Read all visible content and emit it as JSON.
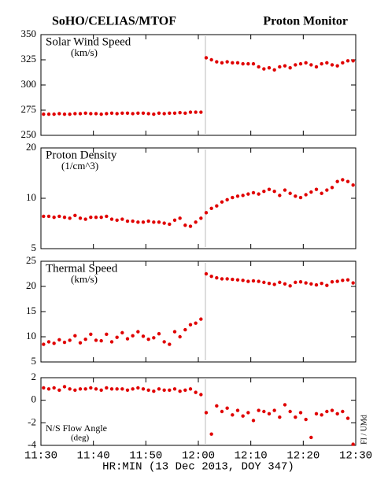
{
  "header": {
    "left": "SoHO/CELIAS/MTOF",
    "right": "Proton Monitor"
  },
  "credit": "FI / UMd",
  "chart_data": [
    {
      "type": "scatter",
      "title": "Solar Wind Speed",
      "units": "(km/s)",
      "color": "#e00000",
      "ylim": [
        250,
        350
      ],
      "yticks": [
        250,
        275,
        300,
        325,
        350
      ],
      "x": [
        690.5,
        691.5,
        692.5,
        693.5,
        694.5,
        695.5,
        696.5,
        697.5,
        698.5,
        699.5,
        700.5,
        701.5,
        702.5,
        703.5,
        704.5,
        705.5,
        706.5,
        707.5,
        708.5,
        709.5,
        710.5,
        711.5,
        712.5,
        713.5,
        714.5,
        715.5,
        716.5,
        717.5,
        718.5,
        719.5,
        720.5,
        721.5,
        722.5,
        723.5,
        724.5,
        725.5,
        726.5,
        727.5,
        728.5,
        729.5,
        730.5,
        731.5,
        732.5,
        733.5,
        734.5,
        735.5,
        736.5,
        737.5,
        738.5,
        739.5,
        740.5,
        741.5,
        742.5,
        743.5,
        744.5,
        745.5,
        746.5,
        747.5,
        748.5,
        749.5
      ],
      "values": [
        271,
        271,
        271,
        271.5,
        271,
        271,
        271.5,
        271.5,
        272,
        271.5,
        271.5,
        271,
        271.5,
        272,
        271.5,
        272,
        272,
        271.5,
        272,
        272,
        271.5,
        271,
        272,
        271.5,
        272,
        272,
        272.5,
        272,
        273,
        273,
        273,
        327,
        325,
        323,
        322,
        323,
        322,
        322,
        321,
        321,
        321,
        318,
        316,
        317,
        315,
        318,
        319,
        317,
        320,
        321,
        322,
        320,
        318,
        321,
        322,
        320,
        319,
        322,
        324,
        324
      ]
    },
    {
      "type": "scatter",
      "title": "Proton Density",
      "units": "(1/cm^3)",
      "color": "#e00000",
      "log": true,
      "ylim": [
        5,
        20
      ],
      "yticks": [
        5,
        10,
        20
      ],
      "x": [
        690.5,
        691.5,
        692.5,
        693.5,
        694.5,
        695.5,
        696.5,
        697.5,
        698.5,
        699.5,
        700.5,
        701.5,
        702.5,
        703.5,
        704.5,
        705.5,
        706.5,
        707.5,
        708.5,
        709.5,
        710.5,
        711.5,
        712.5,
        713.5,
        714.5,
        715.5,
        716.5,
        717.5,
        718.5,
        719.5,
        720.5,
        721.5,
        722.5,
        723.5,
        724.5,
        725.5,
        726.5,
        727.5,
        728.5,
        729.5,
        730.5,
        731.5,
        732.5,
        733.5,
        734.5,
        735.5,
        736.5,
        737.5,
        738.5,
        739.5,
        740.5,
        741.5,
        742.5,
        743.5,
        744.5,
        745.5,
        746.5,
        747.5,
        748.5,
        749.5
      ],
      "values": [
        7.8,
        7.8,
        7.7,
        7.8,
        7.7,
        7.6,
        7.9,
        7.6,
        7.5,
        7.7,
        7.7,
        7.7,
        7.8,
        7.5,
        7.4,
        7.5,
        7.3,
        7.3,
        7.2,
        7.2,
        7.3,
        7.2,
        7.2,
        7.1,
        7.0,
        7.4,
        7.6,
        6.9,
        6.8,
        7.2,
        7.6,
        8.2,
        8.7,
        9.0,
        9.5,
        9.8,
        10.1,
        10.3,
        10.4,
        10.6,
        10.8,
        10.6,
        11.0,
        11.3,
        11.0,
        10.4,
        11.2,
        10.7,
        10.3,
        10.1,
        10.5,
        10.9,
        11.3,
        10.7,
        11.2,
        11.6,
        12.6,
        12.9,
        12.6,
        12.0
      ]
    },
    {
      "type": "scatter",
      "title": "Thermal Speed",
      "units": "(km/s)",
      "color": "#e00000",
      "ylim": [
        5,
        25
      ],
      "yticks": [
        5,
        10,
        15,
        20,
        25
      ],
      "x": [
        690.5,
        691.5,
        692.5,
        693.5,
        694.5,
        695.5,
        696.5,
        697.5,
        698.5,
        699.5,
        700.5,
        701.5,
        702.5,
        703.5,
        704.5,
        705.5,
        706.5,
        707.5,
        708.5,
        709.5,
        710.5,
        711.5,
        712.5,
        713.5,
        714.5,
        715.5,
        716.5,
        717.5,
        718.5,
        719.5,
        720.5,
        721.5,
        722.5,
        723.5,
        724.5,
        725.5,
        726.5,
        727.5,
        728.5,
        729.5,
        730.5,
        731.5,
        732.5,
        733.5,
        734.5,
        735.5,
        736.5,
        737.5,
        738.5,
        739.5,
        740.5,
        741.5,
        742.5,
        743.5,
        744.5,
        745.5,
        746.5,
        747.5,
        748.5,
        749.5
      ],
      "values": [
        8.5,
        9,
        8.7,
        9.4,
        8.9,
        9.3,
        10.2,
        8.8,
        9.5,
        10.5,
        9.3,
        9.2,
        10.5,
        9.0,
        9.9,
        10.8,
        9.6,
        10.2,
        11.0,
        10.1,
        9.5,
        9.8,
        10.6,
        9.0,
        8.5,
        11.0,
        10.0,
        11.4,
        12.4,
        12.7,
        13.5,
        22.5,
        22,
        21.7,
        21.5,
        21.5,
        21.4,
        21.3,
        21.2,
        21.0,
        21.1,
        21.0,
        20.8,
        20.6,
        20.4,
        20.8,
        20.5,
        20.1,
        20.8,
        20.9,
        20.7,
        20.5,
        20.3,
        20.6,
        20.2,
        20.9,
        21.0,
        21.2,
        21.3,
        20.7
      ]
    },
    {
      "type": "scatter",
      "title": "N/S Flow Angle",
      "units": "(deg)",
      "color": "#e00000",
      "ylim": [
        -4,
        2
      ],
      "yticks": [
        -4,
        -2,
        0,
        2
      ],
      "xlabel": "HR:MIN (13 Dec 2013, DOY 347)",
      "xlim": [
        690,
        750
      ],
      "xticks": [
        {
          "value": 690,
          "label": "11:30"
        },
        {
          "value": 700,
          "label": "11:40"
        },
        {
          "value": 710,
          "label": "11:50"
        },
        {
          "value": 720,
          "label": "12:00"
        },
        {
          "value": 730,
          "label": "12:10"
        },
        {
          "value": 740,
          "label": "12:20"
        },
        {
          "value": 750,
          "label": "12:30"
        }
      ],
      "x": [
        690.5,
        691.5,
        692.5,
        693.5,
        694.5,
        695.5,
        696.5,
        697.5,
        698.5,
        699.5,
        700.5,
        701.5,
        702.5,
        703.5,
        704.5,
        705.5,
        706.5,
        707.5,
        708.5,
        709.5,
        710.5,
        711.5,
        712.5,
        713.5,
        714.5,
        715.5,
        716.5,
        717.5,
        718.5,
        719.5,
        720.5,
        721.5,
        722.5,
        723.5,
        724.5,
        725.5,
        726.5,
        727.5,
        728.5,
        729.5,
        730.5,
        731.5,
        732.5,
        733.5,
        734.5,
        735.5,
        736.5,
        737.5,
        738.5,
        739.5,
        740.5,
        741.5,
        742.5,
        743.5,
        744.5,
        745.5,
        746.5,
        747.5,
        748.5,
        749.5
      ],
      "values": [
        1.1,
        1.0,
        1.1,
        0.9,
        1.2,
        1.0,
        0.9,
        1.0,
        1.0,
        1.1,
        1.0,
        0.9,
        1.1,
        1.0,
        1.0,
        1.0,
        0.9,
        1.0,
        1.1,
        1.0,
        0.9,
        0.8,
        1.0,
        0.9,
        0.9,
        1.0,
        0.8,
        0.9,
        1.0,
        0.7,
        0.5,
        -1.1,
        -3.0,
        -0.5,
        -1.0,
        -0.7,
        -1.3,
        -0.9,
        -1.4,
        -1.1,
        -1.8,
        -0.9,
        -1.0,
        -1.2,
        -0.9,
        -1.5,
        -0.4,
        -1.0,
        -1.5,
        -1.1,
        -1.7,
        -3.3,
        -1.2,
        -1.3,
        -1.0,
        -0.9,
        -1.2,
        -1.0,
        -1.6,
        -3.9
      ]
    }
  ]
}
